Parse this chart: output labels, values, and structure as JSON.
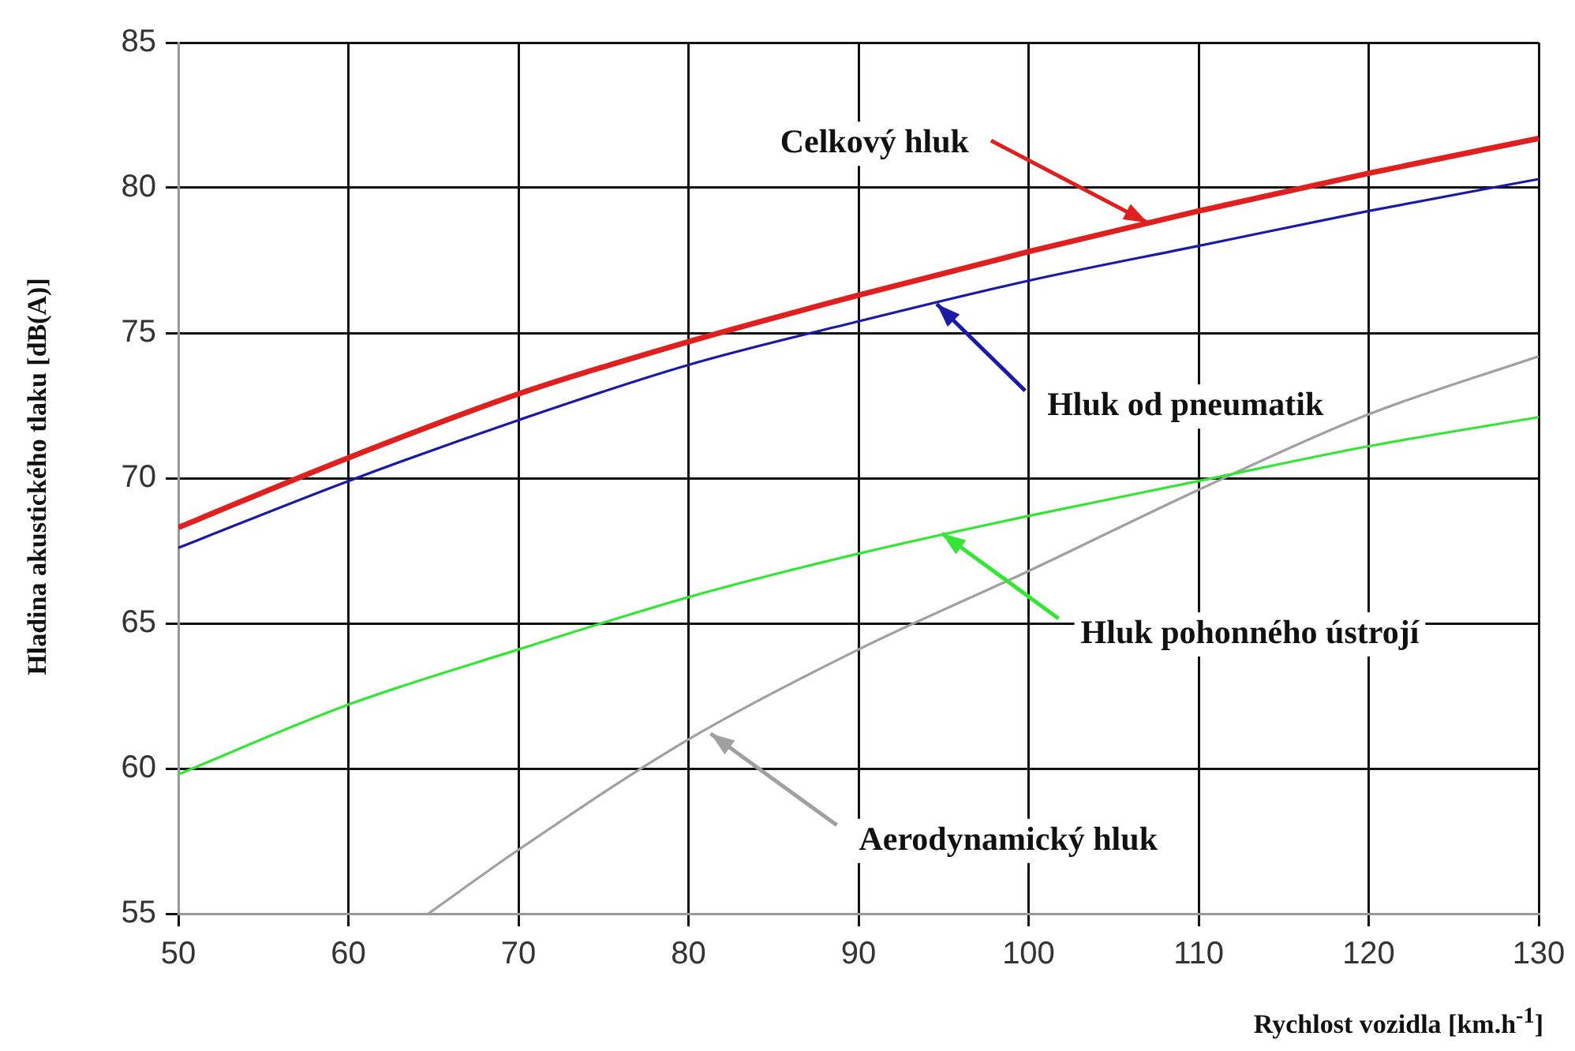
{
  "chart_data": {
    "type": "line",
    "xlabel": "Rychlost vozidla [km.h$^{-1}$]",
    "ylabel": "Hladina akustického tlaku [dB(A)]",
    "x": [
      50,
      60,
      70,
      80,
      90,
      100,
      110,
      120,
      130
    ],
    "series": [
      {
        "color": "#e0201e",
        "values": [
          68.3,
          70.7,
          72.9,
          74.7,
          76.3,
          77.8,
          79.2,
          80.5,
          81.7
        ]
      },
      {
        "color": "#1a1aa6",
        "values": [
          67.6,
          69.9,
          72.0,
          73.9,
          75.4,
          76.8,
          78.0,
          79.2,
          80.3
        ]
      },
      {
        "color": "#33e633",
        "values": [
          59.8,
          62.2,
          64.1,
          65.9,
          67.4,
          68.7,
          69.9,
          71.1,
          72.1
        ]
      },
      {
        "color": "#a0a0a0",
        "x": [
          64.7,
          70,
          80,
          90,
          100,
          110,
          120,
          130
        ],
        "values": [
          55,
          57.2,
          61.0,
          64.1,
          66.8,
          69.6,
          72.2,
          74.2
        ]
      }
    ],
    "annotations": [
      {
        "text": "Celkový hluk",
        "x": 107,
        "y": 78.8
      },
      {
        "text": "Hluk od pneumatik",
        "x": 94.6,
        "y": 76
      },
      {
        "text": "Hluk pohonného ústrojí",
        "x": 94.9,
        "y": 68.1
      },
      {
        "text": "Aerodynamický hluk",
        "x": 81.3,
        "y": 61.2
      }
    ],
    "xlim": [
      50,
      130
    ],
    "xticks": [
      50,
      60,
      70,
      80,
      90,
      100,
      110,
      120,
      130
    ],
    "ylim": [
      55,
      85
    ],
    "yticks": [
      55,
      60,
      65,
      70,
      75,
      80,
      85
    ],
    "grid": true,
    "legend": false,
    "marker": "none",
    "line_style": "solid"
  }
}
